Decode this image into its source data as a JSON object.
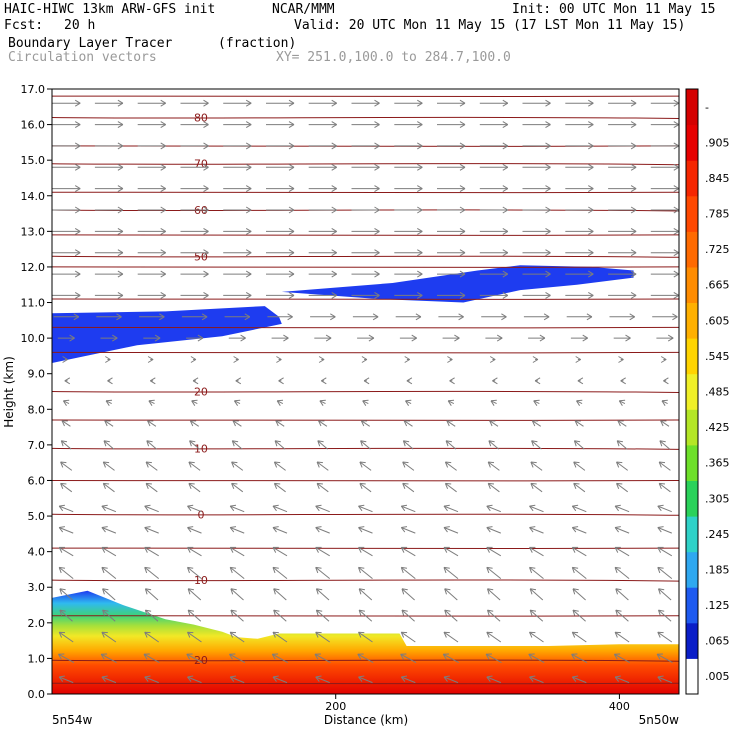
{
  "header": {
    "model": "HAIC-HIWC 13km ARW-GFS init",
    "org": "NCAR/MMM",
    "init": "Init: 00 UTC Mon 11 May 15",
    "fcst_label": "Fcst:",
    "fcst_value": "20 h",
    "valid": "Valid: 20 UTC Mon 11 May 15 (17 LST Mon 11 May 15)",
    "field": "Boundary Layer Tracer",
    "field_units": "(fraction)",
    "vectors": "Circulation vectors",
    "xsec": "XY= 251.0,100.0 to 284.7,100.0"
  },
  "colors": {
    "contour": "#8b1a1a",
    "vector": "#7d7d7d",
    "tracer_high": "#e00000",
    "tracer_low": "#1e3cf0"
  },
  "chart_data": {
    "type": "heatmap",
    "ylabel": "Height (km)",
    "xlabel": "Distance (km)",
    "ylim": [
      0,
      17
    ],
    "xlim": [
      0,
      442
    ],
    "yticks": [
      "0.0",
      "1.0",
      "2.0",
      "3.0",
      "4.0",
      "5.0",
      "6.0",
      "7.0",
      "8.0",
      "9.0",
      "10.0",
      "11.0",
      "12.0",
      "13.0",
      "14.0",
      "15.0",
      "16.0",
      "17.0"
    ],
    "xticks": [
      {
        "value": 200,
        "label": "200"
      },
      {
        "value": 400,
        "label": "400"
      }
    ],
    "x_endpoints": [
      "5n54w",
      "5n50w"
    ],
    "colorbar": {
      "labels": [
        ".005",
        ".065",
        ".125",
        ".185",
        ".245",
        ".305",
        ".365",
        ".425",
        ".485",
        ".545",
        ".605",
        ".665",
        ".725",
        ".785",
        ".845",
        ".905",
        "-"
      ]
    },
    "contours": [
      {
        "label": "80",
        "y": 16.2
      },
      {
        "label": "70",
        "y": 14.9
      },
      {
        "label": "60",
        "y": 13.6
      },
      {
        "label": "50",
        "y": 12.3
      },
      {
        "label": "20",
        "y": 8.5
      },
      {
        "label": "10",
        "y": 6.9
      },
      {
        "label": "0",
        "y": 5.05
      },
      {
        "label": "10",
        "y": 3.2
      },
      {
        "label": "20",
        "y": 0.95
      }
    ],
    "tracer_surface_top": [
      [
        0,
        2.7
      ],
      [
        25,
        2.9
      ],
      [
        50,
        2.5
      ],
      [
        80,
        2.1
      ],
      [
        100,
        1.95
      ],
      [
        120,
        1.75
      ],
      [
        130,
        1.6
      ],
      [
        145,
        1.55
      ],
      [
        160,
        1.7
      ],
      [
        200,
        1.7
      ],
      [
        245,
        1.7
      ],
      [
        250,
        1.35
      ],
      [
        300,
        1.35
      ],
      [
        350,
        1.35
      ],
      [
        400,
        1.4
      ],
      [
        442,
        1.4
      ]
    ],
    "upper_blue_left": {
      "top": [
        [
          0,
          10.7
        ],
        [
          80,
          10.75
        ],
        [
          150,
          10.9
        ],
        [
          160,
          10.6
        ],
        [
          162,
          10.4
        ]
      ],
      "bottom": [
        [
          162,
          10.4
        ],
        [
          120,
          10.05
        ],
        [
          60,
          9.8
        ],
        [
          0,
          9.3
        ]
      ]
    },
    "upper_blue_right": {
      "top": [
        [
          162,
          11.3
        ],
        [
          240,
          11.55
        ],
        [
          300,
          11.9
        ],
        [
          330,
          12.05
        ],
        [
          380,
          12.0
        ],
        [
          410,
          11.9
        ]
      ],
      "bottom": [
        [
          410,
          11.7
        ],
        [
          370,
          11.5
        ],
        [
          330,
          11.35
        ],
        [
          290,
          11.0
        ],
        [
          230,
          11.1
        ],
        [
          162,
          11.3
        ]
      ]
    },
    "wind_rows": [
      {
        "height": 16.6,
        "u": 1.0,
        "w": 0.0
      },
      {
        "height": 16.0,
        "u": 1.0,
        "w": 0.0
      },
      {
        "height": 15.4,
        "u": 1.0,
        "w": 0.0
      },
      {
        "height": 14.8,
        "u": 1.0,
        "w": 0.0
      },
      {
        "height": 14.2,
        "u": 1.0,
        "w": 0.0
      },
      {
        "height": 13.6,
        "u": 1.0,
        "w": 0.0
      },
      {
        "height": 13.0,
        "u": 1.0,
        "w": 0.0
      },
      {
        "height": 12.4,
        "u": 1.0,
        "w": 0.0
      },
      {
        "height": 11.8,
        "u": 1.0,
        "w": 0.0
      },
      {
        "height": 11.2,
        "u": 1.0,
        "w": 0.0
      },
      {
        "height": 10.6,
        "u": 0.9,
        "w": 0.0
      },
      {
        "height": 10.0,
        "u": 0.6,
        "w": 0.0
      },
      {
        "height": 9.4,
        "u": 0.1,
        "w": 0.0
      },
      {
        "height": 8.8,
        "u": -0.1,
        "w": 0.0
      },
      {
        "height": 8.2,
        "u": -0.2,
        "w": 0.1
      },
      {
        "height": 7.6,
        "u": -0.3,
        "w": 0.2
      },
      {
        "height": 7.0,
        "u": -0.35,
        "w": 0.3
      },
      {
        "height": 6.4,
        "u": -0.4,
        "w": 0.3
      },
      {
        "height": 5.8,
        "u": -0.4,
        "w": 0.3
      },
      {
        "height": 5.2,
        "u": -0.5,
        "w": 0.2
      },
      {
        "height": 4.6,
        "u": -0.5,
        "w": 0.2
      },
      {
        "height": 4.0,
        "u": -0.5,
        "w": 0.3
      },
      {
        "height": 3.4,
        "u": -0.5,
        "w": 0.4
      },
      {
        "height": 2.8,
        "u": -0.45,
        "w": 0.4
      },
      {
        "height": 2.2,
        "u": -0.45,
        "w": 0.4
      },
      {
        "height": 1.6,
        "u": -0.5,
        "w": 0.35
      },
      {
        "height": 1.0,
        "u": -0.55,
        "w": 0.3
      },
      {
        "height": 0.4,
        "u": -0.5,
        "w": 0.2
      }
    ]
  }
}
